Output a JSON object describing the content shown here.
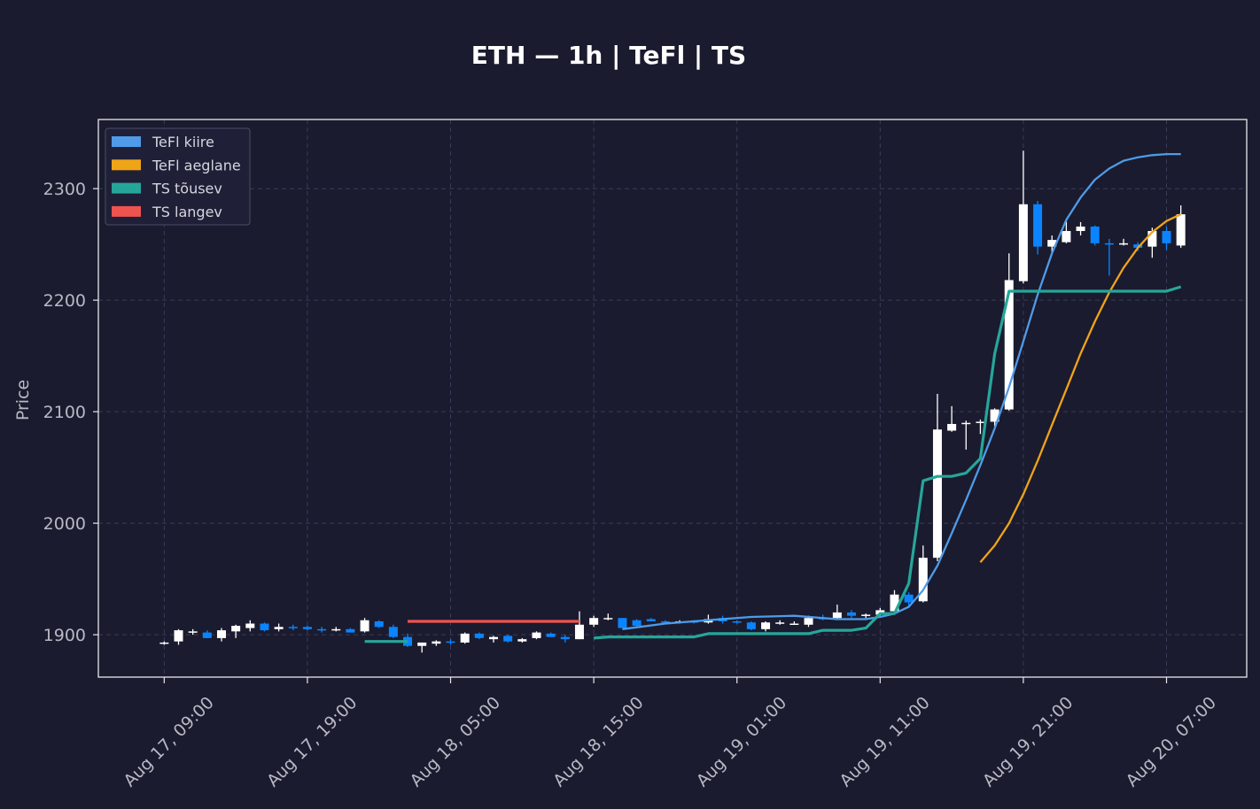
{
  "chart_data": {
    "type": "candlestick",
    "title": "ETH — 1h  |  TeFl  |  TS",
    "ylabel": "Price",
    "xlabel": "",
    "ylim": [
      1862,
      2362
    ],
    "yticks": [
      1900,
      2000,
      2100,
      2200,
      2300
    ],
    "xtick_labels": [
      "Aug 17, 09:00",
      "Aug 17, 19:00",
      "Aug 18, 05:00",
      "Aug 18, 15:00",
      "Aug 19, 01:00",
      "Aug 19, 11:00",
      "Aug 19, 21:00",
      "Aug 20, 07:00"
    ],
    "xtick_hours": [
      0,
      10,
      20,
      30,
      40,
      50,
      60,
      70
    ],
    "x_hour_range": [
      -4.6,
      75.6
    ],
    "grid": true,
    "legend_position": "top-left",
    "colors": {
      "background": "#1a1b2e",
      "candle_up": "#ffffff",
      "candle_down": "#0a84ff",
      "fast": "#4f9be8",
      "slow": "#f0a418",
      "ts_up": "#26a69a",
      "ts_down": "#ef5350"
    },
    "legend": [
      {
        "label": "TeFl kiire",
        "color": "#4f9be8"
      },
      {
        "label": "TeFl aeglane",
        "color": "#f0a418"
      },
      {
        "label": "TS tõusev",
        "color": "#26a69a"
      },
      {
        "label": "TS langev",
        "color": "#ef5350"
      }
    ],
    "candles": [
      [
        1892,
        1894,
        1891,
        1893
      ],
      [
        1894,
        1905,
        1891,
        1904
      ],
      [
        1902,
        1905,
        1900,
        1903
      ],
      [
        1902,
        1904,
        1897,
        1897
      ],
      [
        1897,
        1906,
        1894,
        1904
      ],
      [
        1903,
        1909,
        1897,
        1908
      ],
      [
        1906,
        1913,
        1903,
        1910
      ],
      [
        1910,
        1911,
        1903,
        1904
      ],
      [
        1905,
        1910,
        1903,
        1907
      ],
      [
        1907,
        1909,
        1904,
        1906
      ],
      [
        1907,
        1908,
        1904,
        1905
      ],
      [
        1905,
        1907,
        1902,
        1904
      ],
      [
        1904,
        1907,
        1903,
        1905
      ],
      [
        1905,
        1906,
        1902,
        1902
      ],
      [
        1903,
        1915,
        1902,
        1913
      ],
      [
        1912,
        1913,
        1906,
        1907
      ],
      [
        1907,
        1909,
        1897,
        1898
      ],
      [
        1898,
        1901,
        1889,
        1890
      ],
      [
        1890,
        1893,
        1884,
        1893
      ],
      [
        1892,
        1895,
        1890,
        1894
      ],
      [
        1894,
        1896,
        1891,
        1893
      ],
      [
        1893,
        1902,
        1892,
        1901
      ],
      [
        1901,
        1902,
        1896,
        1897
      ],
      [
        1896,
        1899,
        1893,
        1898
      ],
      [
        1899,
        1900,
        1893,
        1894
      ],
      [
        1894,
        1897,
        1893,
        1896
      ],
      [
        1897,
        1903,
        1896,
        1902
      ],
      [
        1901,
        1902,
        1898,
        1898
      ],
      [
        1898,
        1900,
        1893,
        1896
      ],
      [
        1896,
        1921,
        1896,
        1909
      ],
      [
        1909,
        1917,
        1907,
        1915
      ],
      [
        1915,
        1919,
        1913,
        1915
      ],
      [
        1915,
        1915,
        1906,
        1906
      ],
      [
        1913,
        1914,
        1906,
        1908
      ],
      [
        1914,
        1915,
        1912,
        1912
      ],
      [
        1912,
        1913,
        1910,
        1911
      ],
      [
        1911,
        1913,
        1910,
        1912
      ],
      [
        1912,
        1913,
        1910,
        1911
      ],
      [
        1911,
        1918,
        1910,
        1914
      ],
      [
        1915,
        1917,
        1910,
        1912
      ],
      [
        1912,
        1913,
        1910,
        1911
      ],
      [
        1911,
        1912,
        1904,
        1905
      ],
      [
        1905,
        1912,
        1903,
        1911
      ],
      [
        1910,
        1913,
        1909,
        1911
      ],
      [
        1910,
        1912,
        1909,
        1910
      ],
      [
        1909,
        1917,
        1907,
        1915
      ],
      [
        1915,
        1918,
        1913,
        1914
      ],
      [
        1915,
        1927,
        1914,
        1920
      ],
      [
        1920,
        1922,
        1915,
        1917
      ],
      [
        1917,
        1919,
        1915,
        1918
      ],
      [
        1918,
        1924,
        1917,
        1922
      ],
      [
        1921,
        1940,
        1920,
        1936
      ],
      [
        1936,
        1938,
        1926,
        1929
      ],
      [
        1930,
        1980,
        1929,
        1969
      ],
      [
        1969,
        2116,
        1966,
        2084
      ],
      [
        2083,
        2105,
        2082,
        2089
      ],
      [
        2089,
        2092,
        2066,
        2090
      ],
      [
        2090,
        2093,
        2080,
        2091
      ],
      [
        2091,
        2103,
        2087,
        2102
      ],
      [
        2102,
        2242,
        2101,
        2218
      ],
      [
        2217,
        2334,
        2215,
        2286
      ],
      [
        2286,
        2289,
        2241,
        2248
      ],
      [
        2248,
        2258,
        2242,
        2254
      ],
      [
        2252,
        2272,
        2251,
        2262
      ],
      [
        2262,
        2270,
        2258,
        2266
      ],
      [
        2266,
        2267,
        2249,
        2251
      ],
      [
        2251,
        2255,
        2222,
        2250
      ],
      [
        2250,
        2255,
        2249,
        2251
      ],
      [
        2250,
        2252,
        2244,
        2247
      ],
      [
        2248,
        2265,
        2238,
        2262
      ],
      [
        2262,
        2266,
        2245,
        2251
      ],
      [
        2249,
        2285,
        2247,
        2277
      ]
    ],
    "series": [
      {
        "name": "TeFl kiire",
        "color": "#4f9be8",
        "x": [
          32,
          35,
          38,
          41,
          44,
          47,
          49,
          50,
          51,
          52,
          53,
          54,
          55,
          56,
          57,
          58,
          59,
          60,
          61,
          62,
          63,
          64,
          65,
          66,
          67,
          68,
          69,
          70,
          71
        ],
        "y": [
          1905,
          1910,
          1913,
          1916,
          1917,
          1914,
          1914,
          1916,
          1919,
          1925,
          1940,
          1962,
          1991,
          2021,
          2052,
          2085,
          2122,
          2163,
          2205,
          2242,
          2272,
          2292,
          2308,
          2318,
          2325,
          2328,
          2330,
          2331,
          2331
        ]
      },
      {
        "name": "TeFl aeglane",
        "color": "#f0a418",
        "x": [
          57,
          58,
          59,
          60,
          61,
          62,
          63,
          64,
          65,
          66,
          67,
          68,
          69,
          70,
          71
        ],
        "y": [
          1965,
          1980,
          2000,
          2026,
          2056,
          2088,
          2120,
          2152,
          2181,
          2207,
          2229,
          2247,
          2261,
          2271,
          2277
        ]
      },
      {
        "name": "TS tõusev",
        "color": "#26a69a",
        "x": [
          14,
          15,
          16,
          17
        ],
        "y": [
          1894,
          1894,
          1894,
          1894
        ]
      },
      {
        "name": "TS tõusev",
        "color": "#26a69a",
        "x": [
          30,
          31,
          32,
          33,
          34,
          35,
          36,
          37,
          38,
          39,
          40,
          41,
          42,
          43,
          44,
          45,
          46,
          47,
          48,
          49,
          50,
          51,
          52,
          53,
          54,
          55,
          56,
          57,
          58,
          59,
          60,
          61,
          62,
          63,
          64,
          65,
          66,
          67,
          68,
          69,
          70,
          71
        ],
        "y": [
          1897,
          1898,
          1898,
          1898,
          1898,
          1898,
          1898,
          1898,
          1901,
          1901,
          1901,
          1901,
          1901,
          1901,
          1901,
          1901,
          1904,
          1904,
          1904,
          1906,
          1919,
          1919,
          1946,
          2038,
          2042,
          2042,
          2045,
          2058,
          2152,
          2208,
          2208,
          2208,
          2208,
          2208,
          2208,
          2208,
          2208,
          2208,
          2208,
          2208,
          2208,
          2212
        ]
      },
      {
        "name": "TS langev",
        "color": "#ef5350",
        "x": [
          17,
          29
        ],
        "y": [
          1912,
          1912
        ]
      }
    ]
  }
}
